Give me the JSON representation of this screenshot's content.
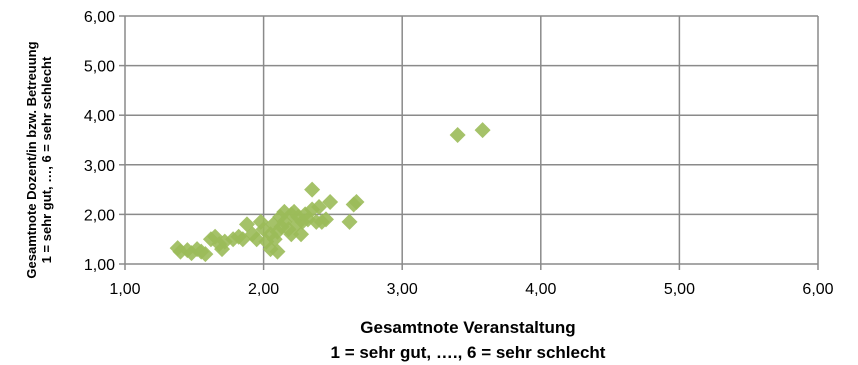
{
  "chart_data": {
    "type": "scatter",
    "title": "",
    "xlabel": [
      "Gesamtnote Veranstaltung",
      "1 = sehr gut, …., 6 = sehr schlecht"
    ],
    "ylabel": [
      "Gesamtnote Dozent/in bzw. Betreuung",
      "1 = sehr gut, …, 6 = sehr schlecht"
    ],
    "xlim": [
      1,
      6
    ],
    "ylim": [
      1,
      6
    ],
    "x_ticks": [
      "1,00",
      "2,00",
      "3,00",
      "4,00",
      "5,00",
      "6,00"
    ],
    "y_ticks": [
      "1,00",
      "2,00",
      "3,00",
      "4,00",
      "5,00",
      "6,00"
    ],
    "grid": true,
    "marker": "diamond",
    "marker_color": "#9bbb59",
    "points": [
      [
        1.38,
        1.32
      ],
      [
        1.4,
        1.25
      ],
      [
        1.45,
        1.28
      ],
      [
        1.48,
        1.22
      ],
      [
        1.52,
        1.3
      ],
      [
        1.55,
        1.25
      ],
      [
        1.58,
        1.2
      ],
      [
        1.62,
        1.5
      ],
      [
        1.65,
        1.55
      ],
      [
        1.68,
        1.4
      ],
      [
        1.7,
        1.3
      ],
      [
        1.72,
        1.45
      ],
      [
        1.78,
        1.5
      ],
      [
        1.82,
        1.55
      ],
      [
        1.85,
        1.5
      ],
      [
        1.88,
        1.8
      ],
      [
        1.92,
        1.6
      ],
      [
        1.95,
        1.5
      ],
      [
        1.98,
        1.85
      ],
      [
        2.0,
        1.7
      ],
      [
        2.02,
        1.45
      ],
      [
        2.05,
        1.3
      ],
      [
        2.05,
        1.6
      ],
      [
        2.07,
        1.8
      ],
      [
        2.08,
        1.5
      ],
      [
        2.1,
        1.65
      ],
      [
        2.1,
        1.25
      ],
      [
        2.12,
        1.95
      ],
      [
        2.13,
        1.75
      ],
      [
        2.15,
        2.05
      ],
      [
        2.15,
        1.85
      ],
      [
        2.18,
        1.7
      ],
      [
        2.2,
        2.0
      ],
      [
        2.2,
        1.6
      ],
      [
        2.22,
        2.05
      ],
      [
        2.24,
        1.8
      ],
      [
        2.25,
        1.95
      ],
      [
        2.27,
        1.6
      ],
      [
        2.28,
        1.85
      ],
      [
        2.3,
        2.0
      ],
      [
        2.32,
        1.9
      ],
      [
        2.35,
        2.1
      ],
      [
        2.35,
        2.5
      ],
      [
        2.38,
        1.85
      ],
      [
        2.4,
        2.15
      ],
      [
        2.42,
        1.85
      ],
      [
        2.45,
        1.9
      ],
      [
        2.48,
        2.25
      ],
      [
        2.62,
        1.85
      ],
      [
        2.65,
        2.2
      ],
      [
        2.67,
        2.25
      ],
      [
        3.4,
        3.6
      ],
      [
        3.58,
        3.7
      ]
    ]
  }
}
